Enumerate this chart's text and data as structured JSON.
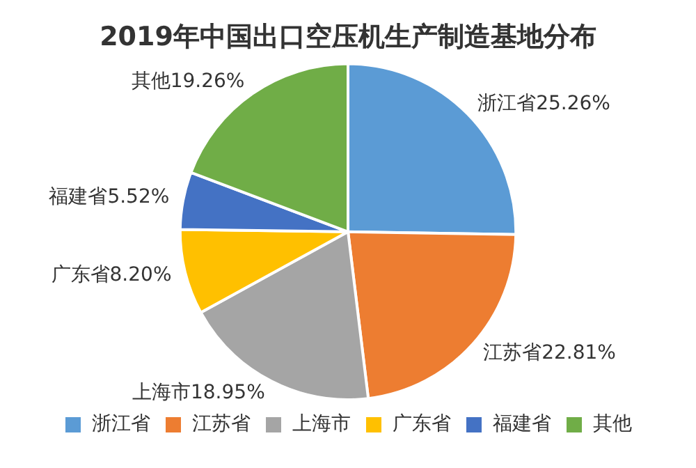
{
  "chart_data": {
    "type": "pie",
    "title": "2019年中国出口空压机生产制造基地分布",
    "categories": [
      "浙江省",
      "江苏省",
      "上海市",
      "广东省",
      "福建省",
      "其他"
    ],
    "values": [
      25.26,
      22.81,
      18.95,
      8.2,
      5.52,
      19.26
    ],
    "value_labels": [
      "25.26%",
      "22.81%",
      "18.95%",
      "8.20%",
      "5.52%",
      "19.26%"
    ],
    "colors": [
      "#5b9bd5",
      "#ed7d31",
      "#a5a5a5",
      "#ffc000",
      "#4472c4",
      "#70ad47"
    ],
    "legend": "bottom"
  }
}
